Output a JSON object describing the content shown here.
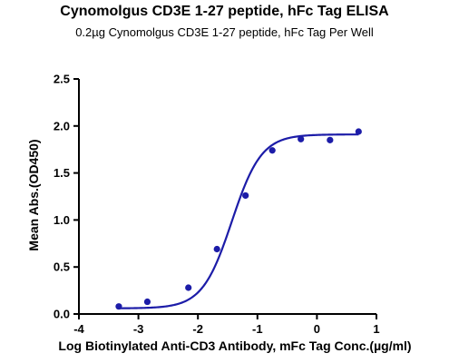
{
  "chart_data": {
    "type": "scatter",
    "title": "Cynomolgus CD3E 1-27 peptide, hFc Tag ELISA",
    "subtitle": "0.2µg Cynomolgus CD3E 1-27 peptide, hFc Tag Per Well",
    "xlabel": "Log Biotinylated Anti-CD3 Antibody, mFc Tag Conc.(µg/ml)",
    "ylabel": "Mean Abs.(OD450)",
    "xlim": [
      -4,
      1
    ],
    "ylim": [
      0,
      2.5
    ],
    "x_ticks": [
      "-4",
      "-3",
      "-2",
      "-1",
      "0",
      "1"
    ],
    "y_ticks": [
      "0.0",
      "0.5",
      "1.0",
      "1.5",
      "2.0",
      "2.5"
    ],
    "grid": false,
    "series": [
      {
        "x": [
          -3.33,
          -2.85,
          -2.16,
          -1.68,
          -1.2,
          -0.75,
          -0.27,
          0.22,
          0.7
        ],
        "y": [
          0.08,
          0.13,
          0.28,
          0.69,
          1.26,
          1.74,
          1.86,
          1.85,
          1.94
        ],
        "color": "#1c1ca8"
      }
    ],
    "fit_curve": {
      "bottom": 0.06,
      "top": 1.91,
      "logEC50": -1.43,
      "hill": 1.75,
      "color": "#1c1ca8"
    }
  }
}
